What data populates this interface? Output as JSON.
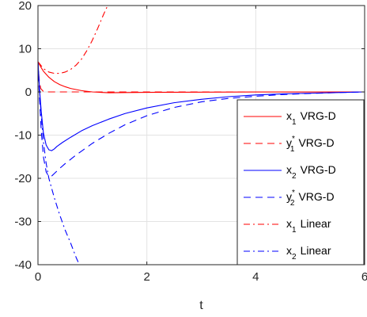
{
  "chart_data": {
    "type": "line",
    "title": "",
    "xlabel": "t",
    "ylabel": "",
    "xlim": [
      0,
      6
    ],
    "ylim": [
      -40,
      20
    ],
    "xticks": [
      0,
      2,
      4,
      6
    ],
    "yticks": [
      -40,
      -30,
      -20,
      -10,
      0,
      10,
      20
    ],
    "xtick_labels": [
      "0",
      "2",
      "4",
      "6"
    ],
    "ytick_labels": [
      "-40",
      "-30",
      "-20",
      "-10",
      "0",
      "10",
      "20"
    ],
    "grid": true,
    "legend_position": "bottom-right",
    "series": [
      {
        "name": "x",
        "sub": "1",
        "sup": "",
        "suffix": "VRG-D",
        "color": "#ff0000",
        "dash": "solid",
        "x": [
          0,
          0.05,
          0.1,
          0.2,
          0.3,
          0.4,
          0.5,
          0.6,
          0.8,
          1.0,
          1.3,
          1.6,
          2.0,
          3.0,
          4.0,
          5.0,
          6.0
        ],
        "y": [
          7.0,
          5.8,
          4.8,
          3.4,
          2.4,
          1.7,
          1.2,
          0.8,
          0.3,
          0.0,
          -0.2,
          -0.15,
          -0.1,
          -0.05,
          -0.02,
          -0.01,
          0.0
        ]
      },
      {
        "name": "y",
        "sub": "1",
        "sup": "*",
        "suffix": "VRG-D",
        "color": "#ff0000",
        "dash": "dash",
        "x": [
          0,
          0.02,
          0.05,
          0.1,
          0.2,
          0.4,
          0.8,
          1.5,
          3.0,
          4.5,
          6.0
        ],
        "y": [
          7.0,
          3.0,
          0.8,
          0.1,
          0.0,
          0.0,
          0.0,
          0.0,
          0.0,
          0.0,
          0.0
        ]
      },
      {
        "name": "x",
        "sub": "2",
        "sup": "",
        "suffix": "VRG-D",
        "color": "#0000ff",
        "dash": "solid",
        "x": [
          0,
          0.03,
          0.06,
          0.1,
          0.15,
          0.2,
          0.25,
          0.3,
          0.35,
          0.45,
          0.6,
          0.8,
          1.0,
          1.3,
          1.6,
          2.0,
          2.5,
          3.0,
          3.5,
          4.0,
          4.5,
          5.0,
          5.5,
          6.0
        ],
        "y": [
          7.0,
          0.5,
          -4.5,
          -9.5,
          -12.3,
          -13.4,
          -13.6,
          -13.2,
          -12.6,
          -11.7,
          -10.5,
          -9.0,
          -7.8,
          -6.3,
          -5.0,
          -3.7,
          -2.5,
          -1.7,
          -1.1,
          -0.7,
          -0.45,
          -0.3,
          -0.15,
          0.0
        ]
      },
      {
        "name": "y",
        "sub": "2",
        "sup": "*",
        "suffix": "VRG-D",
        "color": "#0000ff",
        "dash": "dash",
        "x": [
          0,
          0.03,
          0.06,
          0.1,
          0.15,
          0.2,
          0.25,
          0.3,
          0.4,
          0.5,
          0.7,
          1.0,
          1.3,
          1.6,
          2.0,
          2.5,
          3.0,
          3.5,
          4.0,
          4.5,
          5.0,
          5.5,
          6.0
        ],
        "y": [
          7.0,
          -2.0,
          -9.0,
          -15.0,
          -18.5,
          -19.6,
          -19.5,
          -18.9,
          -17.7,
          -16.6,
          -14.6,
          -11.9,
          -9.6,
          -7.6,
          -5.5,
          -3.6,
          -2.3,
          -1.5,
          -1.0,
          -0.6,
          -0.35,
          -0.15,
          0.0
        ]
      },
      {
        "name": "x",
        "sub": "1",
        "sup": "",
        "suffix": "Linear",
        "color": "#ff0000",
        "dash": "dashdot",
        "x": [
          0,
          0.1,
          0.2,
          0.3,
          0.4,
          0.5,
          0.6,
          0.7,
          0.8,
          0.9,
          1.0,
          1.1,
          1.2,
          1.28
        ],
        "y": [
          7.0,
          5.4,
          4.6,
          4.3,
          4.3,
          4.6,
          5.2,
          6.2,
          7.6,
          9.6,
          12.0,
          14.8,
          17.8,
          20.0
        ]
      },
      {
        "name": "x",
        "sub": "2",
        "sup": "",
        "suffix": "Linear",
        "color": "#0000ff",
        "dash": "dashdot",
        "x": [
          0,
          0.03,
          0.06,
          0.1,
          0.15,
          0.2,
          0.3,
          0.4,
          0.5,
          0.6,
          0.7,
          0.76
        ],
        "y": [
          7.0,
          0.0,
          -5.5,
          -11.5,
          -16.5,
          -20.0,
          -24.5,
          -28.5,
          -32.0,
          -35.0,
          -38.3,
          -40.0
        ]
      }
    ]
  }
}
